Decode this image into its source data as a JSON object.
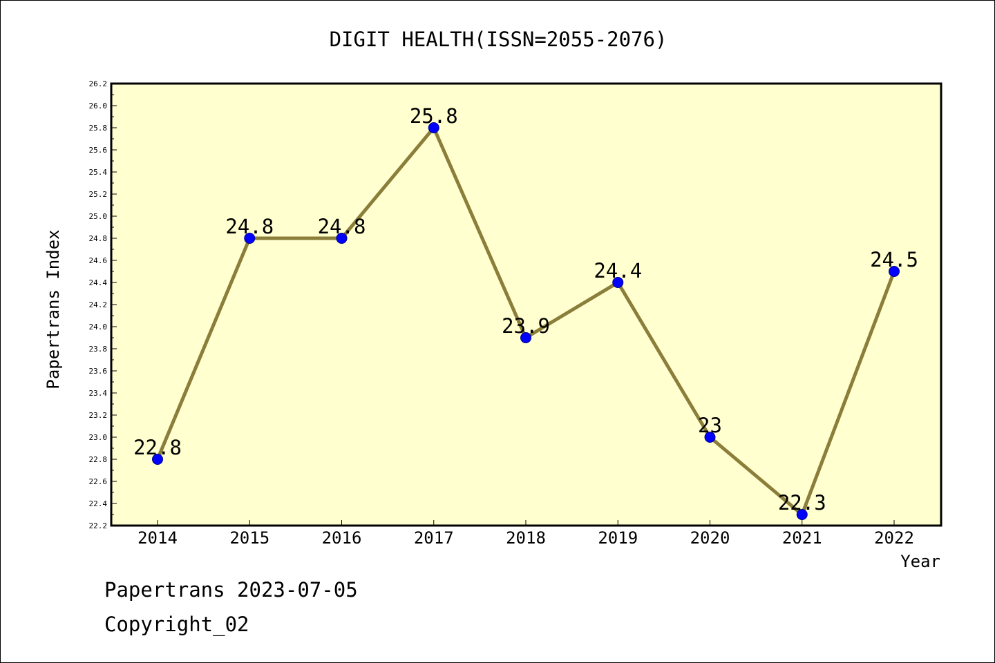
{
  "chart_data": {
    "type": "line",
    "title": "DIGIT HEALTH(ISSN=2055-2076)",
    "xlabel": "Year",
    "ylabel": "Papertrans Index",
    "categories": [
      "2014",
      "2015",
      "2016",
      "2017",
      "2018",
      "2019",
      "2020",
      "2021",
      "2022"
    ],
    "values": [
      22.8,
      24.8,
      24.8,
      25.8,
      23.9,
      24.4,
      23.0,
      22.3,
      24.5
    ],
    "data_labels": [
      "22.8",
      "24.8",
      "24.8",
      "25.8",
      "23.9",
      "24.4",
      "23",
      "22.3",
      "24.5"
    ],
    "ylim": [
      22.2,
      26.2
    ],
    "y_ticks": [
      "22.2",
      "22.4",
      "22.6",
      "22.8",
      "23.0",
      "23.2",
      "23.4",
      "23.6",
      "23.8",
      "24.0",
      "24.2",
      "24.4",
      "24.6",
      "24.8",
      "25.0",
      "25.2",
      "25.4",
      "25.6",
      "25.8",
      "26.0",
      "26.2"
    ],
    "grid": false,
    "legend": "none",
    "colors": {
      "plot_background": "#ffffd0",
      "line": "#8b7d3a",
      "marker": "#0000ff",
      "axis": "#000000"
    }
  },
  "footer": {
    "line1": "Papertrans 2023-07-05",
    "line2": "Copyright_02"
  }
}
